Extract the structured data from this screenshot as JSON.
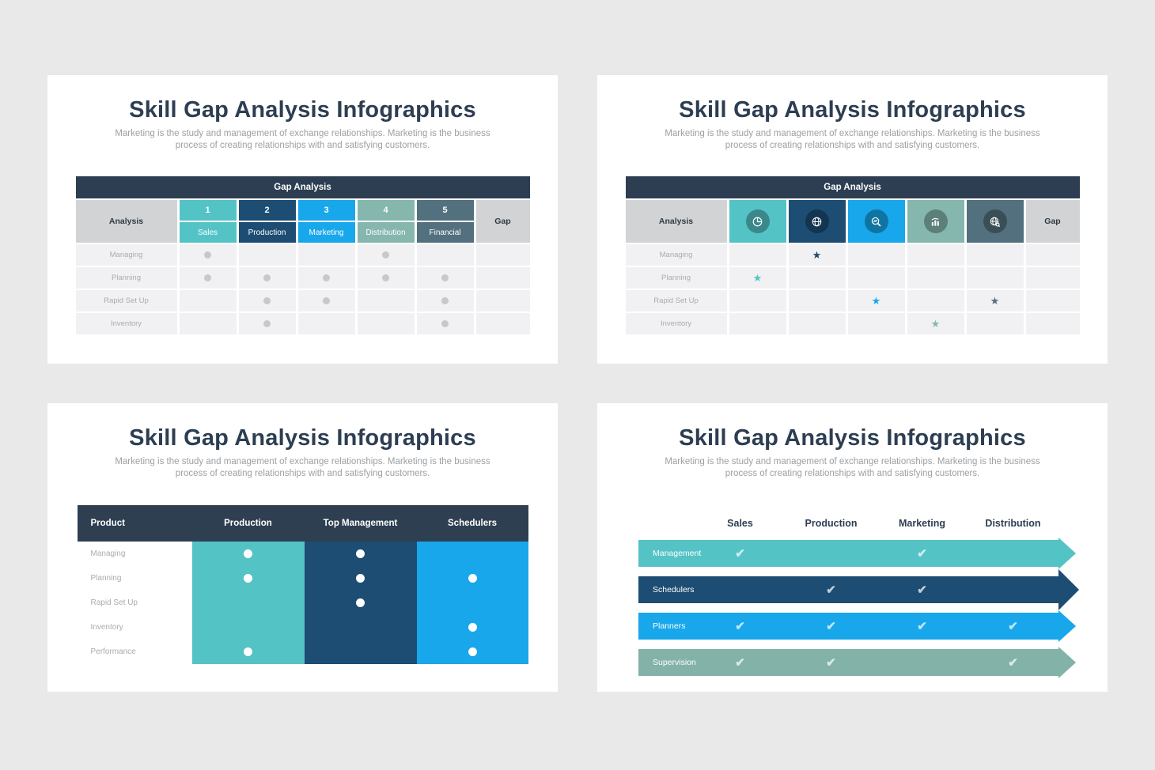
{
  "palette": {
    "navy": "#2d3e52",
    "teal": "#54c3c6",
    "dark_blue": "#1d4d72",
    "bright_blue": "#18a7ea",
    "sage": "#85b7ae",
    "slate": "#53707f",
    "page_bg": "#e9e9ea",
    "card_bg": "#ffffff",
    "row_bg": "#f1f1f3",
    "gray_cell": "#d2d3d4",
    "dot_gray": "#c7c8ca",
    "label_gray": "#a9abad"
  },
  "slides": [
    {
      "title": "Skill Gap Analysis Infographics",
      "subtitle": "Marketing is the study and management of exchange relationships. Marketing is the business process of creating relationships with and satisfying customers.",
      "table": {
        "caption": "Gap Analysis",
        "corner_label": "Analysis",
        "gap_label": "Gap",
        "columns": [
          {
            "num": "1",
            "label": "Sales",
            "color": "#54c3c6"
          },
          {
            "num": "2",
            "label": "Production",
            "color": "#1d4d72"
          },
          {
            "num": "3",
            "label": "Marketing",
            "color": "#18a7ea"
          },
          {
            "num": "4",
            "label": "Distribution",
            "color": "#85b7ae"
          },
          {
            "num": "5",
            "label": "Financial",
            "color": "#53707f"
          }
        ],
        "rows": [
          {
            "label": "Managing",
            "dots": [
              1,
              0,
              0,
              1,
              0
            ]
          },
          {
            "label": "Planning",
            "dots": [
              1,
              1,
              1,
              1,
              1
            ]
          },
          {
            "label": "Rapid Set Up",
            "dots": [
              0,
              1,
              1,
              0,
              1
            ]
          },
          {
            "label": "Inventory",
            "dots": [
              0,
              1,
              0,
              0,
              1
            ]
          }
        ]
      }
    },
    {
      "title": "Skill Gap Analysis Infographics",
      "subtitle": "Marketing is the study and management of exchange relationships. Marketing is the business process of creating relationships with and satisfying customers.",
      "table": {
        "caption": "Gap Analysis",
        "corner_label": "Analysis",
        "gap_label": "Gap",
        "columns": [
          {
            "icon": "pie-chart-icon",
            "color": "#54c3c6"
          },
          {
            "icon": "globe-network-icon",
            "color": "#1d4d72"
          },
          {
            "icon": "search-chart-icon",
            "color": "#18a7ea"
          },
          {
            "icon": "bar-chart-icon",
            "color": "#85b7ae"
          },
          {
            "icon": "globe-search-icon",
            "color": "#53707f"
          }
        ],
        "rows": [
          {
            "label": "Managing",
            "stars": [
              0,
              1,
              0,
              0,
              0
            ]
          },
          {
            "label": "Planning",
            "stars": [
              1,
              0,
              0,
              0,
              0
            ]
          },
          {
            "label": "Rapid Set Up",
            "stars": [
              0,
              0,
              1,
              0,
              1
            ]
          },
          {
            "label": "Inventory",
            "stars": [
              0,
              0,
              0,
              1,
              0
            ]
          }
        ]
      }
    },
    {
      "title": "Skill Gap Analysis Infographics",
      "subtitle": "Marketing is the study and management of exchange relationships. Marketing is the business process of creating relationships with and satisfying customers.",
      "table": {
        "headers": [
          "Product",
          "Production",
          "Top Management",
          "Schedulers"
        ],
        "column_colors": [
          "#54c3c6",
          "#1d4d72",
          "#18a7ea"
        ],
        "rows": [
          {
            "label": "Managing",
            "dots": [
              1,
              1,
              0
            ]
          },
          {
            "label": "Planning",
            "dots": [
              1,
              1,
              1
            ]
          },
          {
            "label": "Rapid Set Up",
            "dots": [
              0,
              1,
              0
            ]
          },
          {
            "label": "Inventory",
            "dots": [
              0,
              0,
              1
            ]
          },
          {
            "label": "Performance",
            "dots": [
              1,
              0,
              1
            ]
          }
        ]
      }
    },
    {
      "title": "Skill Gap Analysis Infographics",
      "subtitle": "Marketing is the study and management of exchange relationships. Marketing is the business process of creating relationships with and satisfying customers.",
      "headers": [
        "Sales",
        "Production",
        "Marketing",
        "Distribution"
      ],
      "arrows": [
        {
          "label": "Management",
          "color": "#54c3c6",
          "checks": [
            1,
            0,
            1,
            0
          ],
          "big_head": false
        },
        {
          "label": "Schedulers",
          "color": "#1d4d72",
          "checks": [
            0,
            1,
            1,
            0
          ],
          "big_head": true
        },
        {
          "label": "Planners",
          "color": "#18a7ea",
          "checks": [
            1,
            1,
            1,
            1
          ],
          "big_head": false
        },
        {
          "label": "Supervision",
          "color": "#83b2a9",
          "checks": [
            1,
            1,
            0,
            1
          ],
          "big_head": false
        }
      ]
    }
  ]
}
